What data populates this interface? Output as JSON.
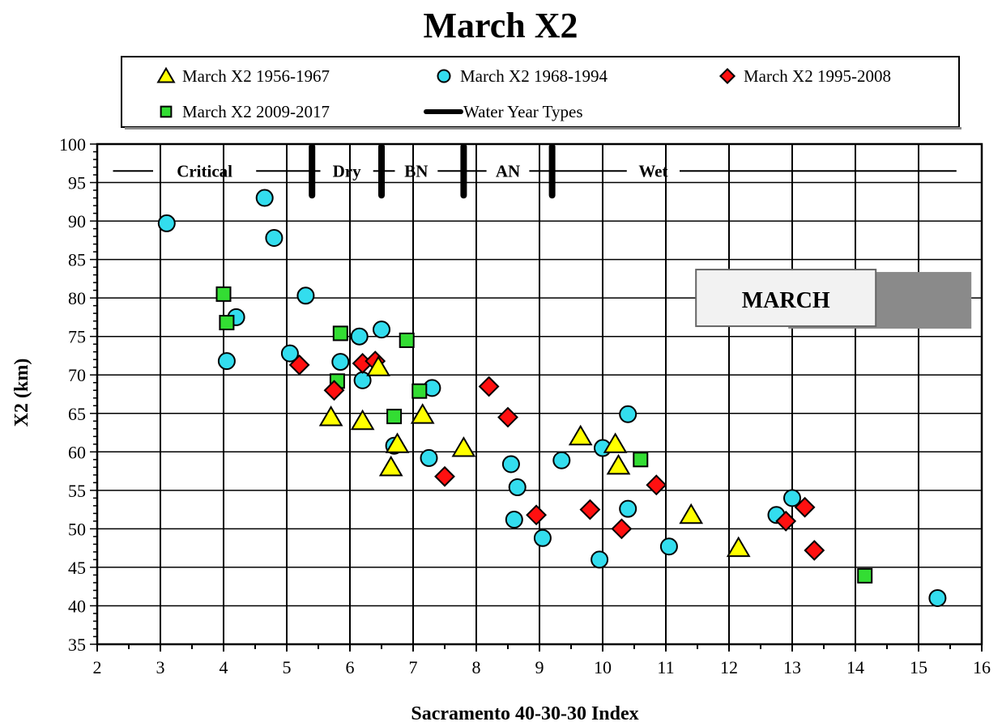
{
  "chart_data": {
    "type": "scatter",
    "title": "March X2",
    "xlabel": "Sacramento 40-30-30 Index",
    "ylabel": "X2 (km)",
    "xlim": [
      2,
      16
    ],
    "ylim": [
      35,
      100
    ],
    "x_ticks": [
      2,
      3,
      4,
      5,
      6,
      7,
      8,
      9,
      10,
      11,
      12,
      13,
      14,
      15,
      16
    ],
    "y_ticks": [
      35,
      40,
      45,
      50,
      55,
      60,
      65,
      70,
      75,
      80,
      85,
      90,
      95,
      100
    ],
    "grid": "vertical-and-horizontal",
    "legend_placement": "top",
    "series": [
      {
        "name": "March X2 1956-1967",
        "marker": "triangle",
        "color": "#ffff00",
        "points": [
          {
            "x": 5.7,
            "y": 64.5
          },
          {
            "x": 6.2,
            "y": 64.0
          },
          {
            "x": 6.45,
            "y": 71.0
          },
          {
            "x": 6.65,
            "y": 58.0
          },
          {
            "x": 6.75,
            "y": 61.0
          },
          {
            "x": 7.15,
            "y": 64.8
          },
          {
            "x": 7.8,
            "y": 60.5
          },
          {
            "x": 9.65,
            "y": 62.0
          },
          {
            "x": 10.2,
            "y": 61.0
          },
          {
            "x": 10.25,
            "y": 58.2
          },
          {
            "x": 11.4,
            "y": 51.8
          },
          {
            "x": 12.15,
            "y": 47.5
          }
        ]
      },
      {
        "name": "March X2 1968-1994",
        "marker": "circle",
        "color": "#33ddee",
        "points": [
          {
            "x": 3.1,
            "y": 89.7
          },
          {
            "x": 4.05,
            "y": 71.8
          },
          {
            "x": 4.2,
            "y": 77.5
          },
          {
            "x": 4.65,
            "y": 93.0
          },
          {
            "x": 4.8,
            "y": 87.8
          },
          {
            "x": 5.05,
            "y": 72.8
          },
          {
            "x": 5.3,
            "y": 80.3
          },
          {
            "x": 5.85,
            "y": 71.7
          },
          {
            "x": 6.15,
            "y": 75.0
          },
          {
            "x": 6.2,
            "y": 69.3
          },
          {
            "x": 6.5,
            "y": 75.9
          },
          {
            "x": 6.7,
            "y": 60.8
          },
          {
            "x": 7.25,
            "y": 59.2
          },
          {
            "x": 7.3,
            "y": 68.3
          },
          {
            "x": 8.55,
            "y": 58.4
          },
          {
            "x": 8.6,
            "y": 51.2
          },
          {
            "x": 8.65,
            "y": 55.4
          },
          {
            "x": 9.05,
            "y": 48.8
          },
          {
            "x": 9.35,
            "y": 58.9
          },
          {
            "x": 9.95,
            "y": 46.0
          },
          {
            "x": 10.0,
            "y": 60.5
          },
          {
            "x": 10.4,
            "y": 52.6
          },
          {
            "x": 10.4,
            "y": 64.9
          },
          {
            "x": 11.05,
            "y": 47.7
          },
          {
            "x": 12.75,
            "y": 51.8
          },
          {
            "x": 13.0,
            "y": 54.0
          },
          {
            "x": 15.3,
            "y": 41.0
          }
        ]
      },
      {
        "name": "March X2 1995-2008",
        "marker": "diamond",
        "color": "#ff1010",
        "points": [
          {
            "x": 5.2,
            "y": 71.3
          },
          {
            "x": 5.75,
            "y": 68.0
          },
          {
            "x": 6.2,
            "y": 71.5
          },
          {
            "x": 6.4,
            "y": 71.8
          },
          {
            "x": 7.5,
            "y": 56.8
          },
          {
            "x": 8.2,
            "y": 68.5
          },
          {
            "x": 8.5,
            "y": 64.5
          },
          {
            "x": 8.95,
            "y": 51.8
          },
          {
            "x": 9.8,
            "y": 52.5
          },
          {
            "x": 10.3,
            "y": 50.0
          },
          {
            "x": 10.85,
            "y": 55.7
          },
          {
            "x": 12.9,
            "y": 51.0
          },
          {
            "x": 13.2,
            "y": 52.8
          },
          {
            "x": 13.35,
            "y": 47.2
          }
        ]
      },
      {
        "name": "March X2 2009-2017",
        "marker": "square",
        "color": "#33dd33",
        "points": [
          {
            "x": 4.0,
            "y": 80.5
          },
          {
            "x": 4.05,
            "y": 76.8
          },
          {
            "x": 5.8,
            "y": 69.2
          },
          {
            "x": 5.85,
            "y": 75.4
          },
          {
            "x": 6.7,
            "y": 64.6
          },
          {
            "x": 6.9,
            "y": 74.5
          },
          {
            "x": 7.1,
            "y": 67.9
          },
          {
            "x": 10.6,
            "y": 59.0
          },
          {
            "x": 14.15,
            "y": 43.9
          }
        ]
      }
    ],
    "water_year_types": {
      "legend_name": "Water Year Types",
      "y": 96.5,
      "boundaries": [
        5.4,
        6.5,
        7.8,
        9.2
      ],
      "labels": [
        {
          "text": "Critical",
          "x": 3.7
        },
        {
          "text": "Dry",
          "x": 5.95
        },
        {
          "text": "BN",
          "x": 7.05
        },
        {
          "text": "AN",
          "x": 8.5
        },
        {
          "text": "Wet",
          "x": 10.8
        }
      ]
    },
    "annotation": {
      "text": "MARCH",
      "x": 12.9,
      "y": 79.8
    }
  }
}
